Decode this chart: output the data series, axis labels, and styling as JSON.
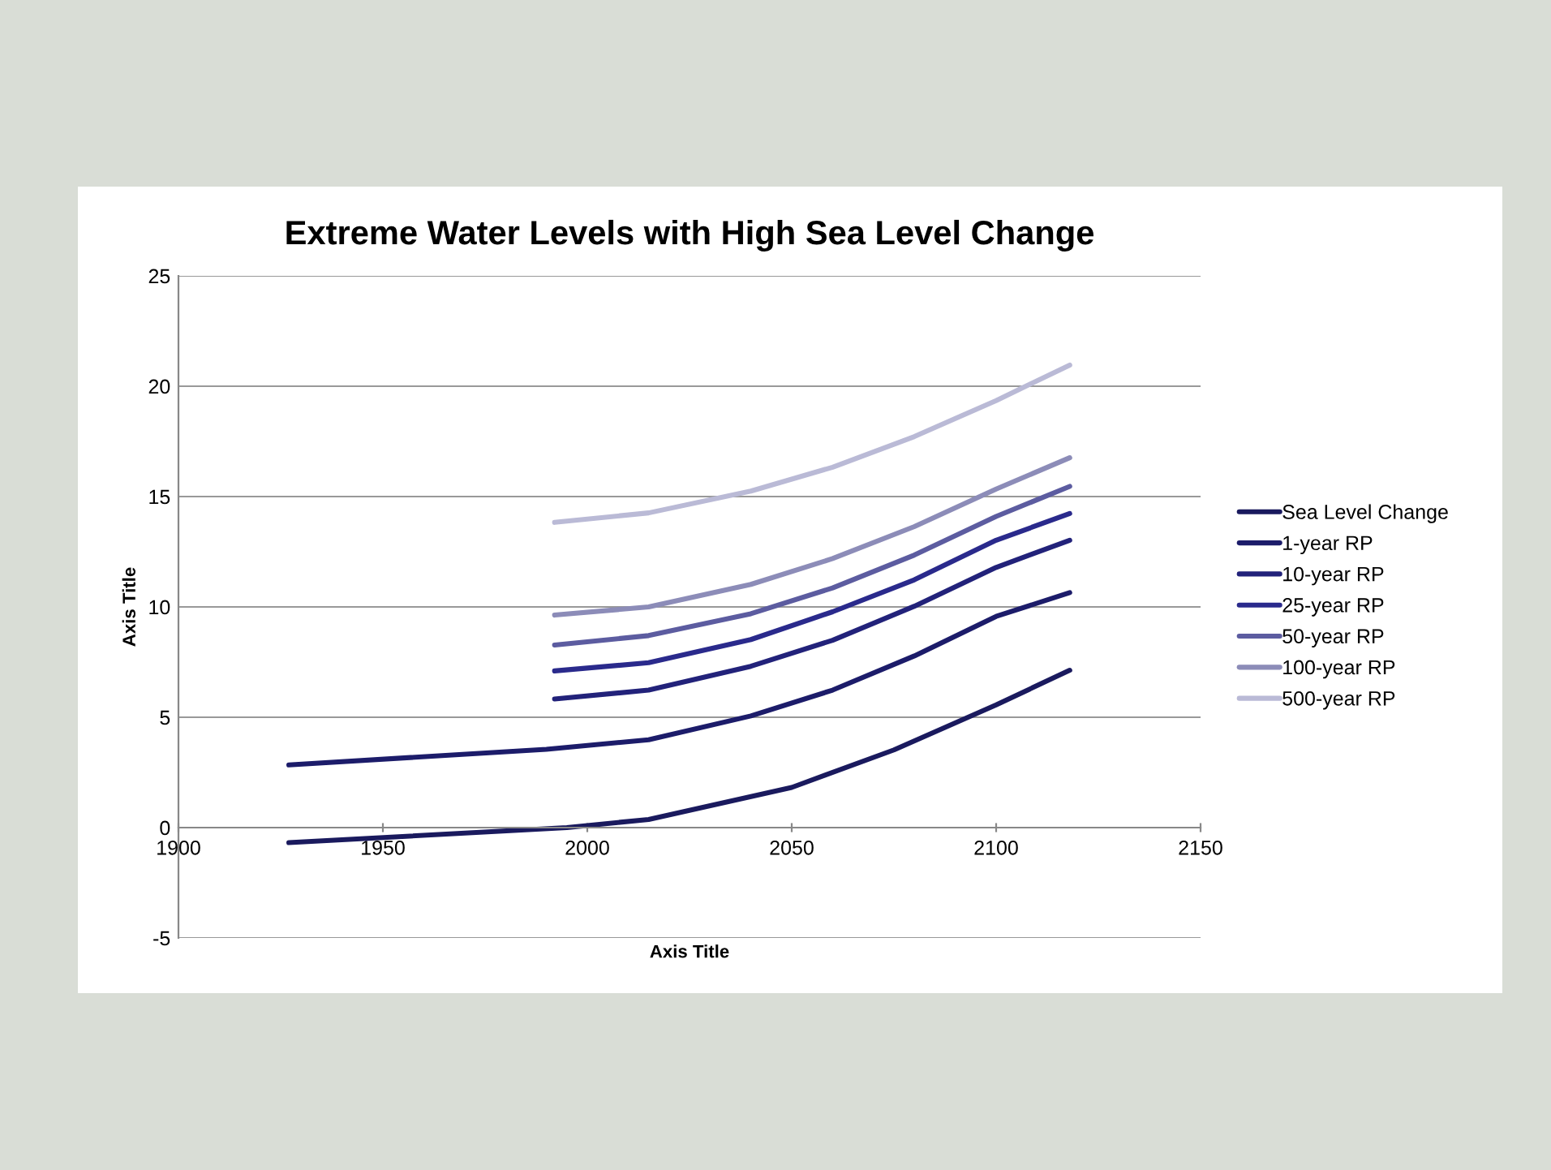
{
  "chart_data": {
    "type": "line",
    "title": "Extreme Water Levels with High Sea Level Change",
    "xlabel": "Axis Title",
    "ylabel": "Axis Title",
    "xlim": [
      1900,
      2150
    ],
    "xticks": [
      1900,
      1950,
      2000,
      2050,
      2100,
      2150
    ],
    "ylim": [
      -5,
      25
    ],
    "yticks": [
      -5,
      0,
      5,
      10,
      15,
      20,
      25
    ],
    "grid": "y",
    "legend": "right",
    "marker": "none",
    "line_style": "solid",
    "series": [
      {
        "name": "Sea Level Change",
        "color": "#1a1a5e",
        "x": [
          1927,
          1995,
          2015,
          2050,
          2075,
          2100,
          2118
        ],
        "values": [
          -0.68,
          0,
          0.37,
          1.82,
          3.52,
          5.56,
          7.13
        ]
      },
      {
        "name": "1-year RP",
        "color": "#1c1c6a",
        "x": [
          1927,
          1990,
          2015,
          2040,
          2060,
          2080,
          2100,
          2118
        ],
        "values": [
          2.84,
          3.55,
          3.98,
          5.06,
          6.23,
          7.78,
          9.57,
          10.65
        ]
      },
      {
        "name": "10-year RP",
        "color": "#22227a",
        "x": [
          1992,
          2015,
          2040,
          2060,
          2080,
          2100,
          2118
        ],
        "values": [
          5.83,
          6.23,
          7.31,
          8.49,
          10.03,
          11.79,
          13.02
        ]
      },
      {
        "name": "25-year RP",
        "color": "#2a2a8c",
        "x": [
          1992,
          2015,
          2040,
          2060,
          2080,
          2100,
          2118
        ],
        "values": [
          7.1,
          7.47,
          8.52,
          9.78,
          11.23,
          13.02,
          14.23
        ]
      },
      {
        "name": "50-year RP",
        "color": "#5c5ca0",
        "x": [
          1992,
          2015,
          2040,
          2060,
          2080,
          2100,
          2118
        ],
        "values": [
          8.27,
          8.7,
          9.69,
          10.86,
          12.35,
          14.1,
          15.46
        ]
      },
      {
        "name": "100-year RP",
        "color": "#8c8cb8",
        "x": [
          1992,
          2015,
          2040,
          2060,
          2080,
          2100,
          2118
        ],
        "values": [
          9.63,
          10.0,
          11.02,
          12.19,
          13.64,
          15.34,
          16.76
        ]
      },
      {
        "name": "500-year RP",
        "color": "#babad6",
        "x": [
          1992,
          2015,
          2040,
          2060,
          2080,
          2100,
          2118
        ],
        "values": [
          13.83,
          14.26,
          15.25,
          16.33,
          17.72,
          19.35,
          20.96
        ]
      }
    ]
  }
}
